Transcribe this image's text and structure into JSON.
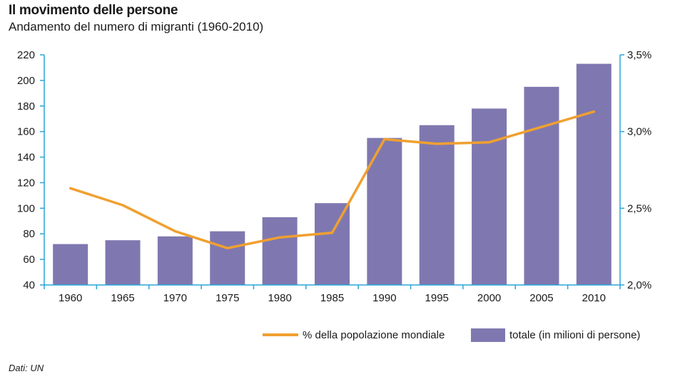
{
  "title": "Il movimento delle persone",
  "subtitle": "Andamento del numero di migranti (1960-2010)",
  "source": "Dati: UN",
  "colors": {
    "bar": "#7f78b0",
    "line": "#f0a030",
    "axis": "#2aa6d8",
    "text": "#1a1a1a"
  },
  "chart_data": {
    "type": "bar",
    "categories": [
      "1960",
      "1965",
      "1970",
      "1975",
      "1980",
      "1985",
      "1990",
      "1995",
      "2000",
      "2005",
      "2010"
    ],
    "series": [
      {
        "name": "totale (in milioni di persone)",
        "type": "bar",
        "axis": "left",
        "values": [
          72,
          75,
          78,
          82,
          93,
          104,
          155,
          165,
          178,
          195,
          213
        ]
      },
      {
        "name": "% della popolazione mondiale",
        "type": "line",
        "axis": "right",
        "values": [
          2.63,
          2.52,
          2.35,
          2.24,
          2.31,
          2.34,
          2.95,
          2.92,
          2.93,
          3.03,
          3.13
        ]
      }
    ],
    "y_left": {
      "min": 40,
      "max": 220,
      "ticks": [
        "40",
        "60",
        "80",
        "100",
        "120",
        "140",
        "160",
        "180",
        "200",
        "220"
      ]
    },
    "y_right": {
      "min": 2.0,
      "max": 3.5,
      "ticks": [
        "2,0%",
        "2,5%",
        "3,0%",
        "3,5%"
      ]
    },
    "legend": {
      "placement": "bottom-right",
      "line_label": "% della popolazione mondiale",
      "bar_label": "totale (in milioni di persone)"
    },
    "grid": false
  }
}
